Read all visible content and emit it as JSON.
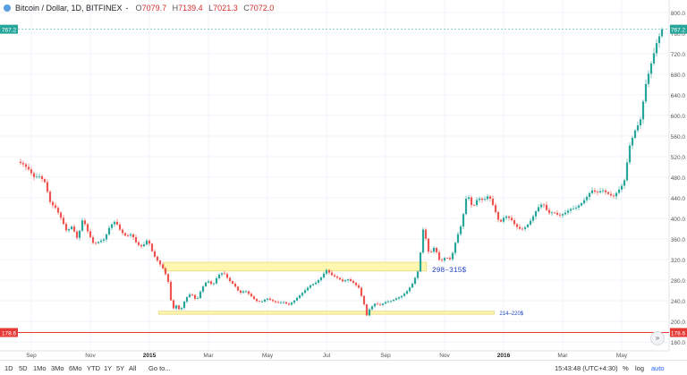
{
  "legend": {
    "symbol": "Bitcoin / Dollar, 1D, BITFINEX",
    "dash": "-",
    "o_label": "O",
    "o_value": "7079.7",
    "h_label": "H",
    "h_value": "7139.4",
    "l_label": "L",
    "l_value": "7021.3",
    "c_label": "C",
    "c_value": "7072.0"
  },
  "price_axis": {
    "ticks": [
      "800.0",
      "760.0",
      "720.0",
      "680.0",
      "640.0",
      "600.0",
      "560.0",
      "520.0",
      "480.0",
      "440.0",
      "400.0",
      "360.0",
      "320.0",
      "280.0",
      "240.0",
      "200.0",
      "160.0"
    ],
    "last_price_label": "767.2",
    "hline_label": "178.6"
  },
  "colors": {
    "up": "#26a69a",
    "down": "#ef5350",
    "hline": "#e53935",
    "zone_fill": "#fff6b0",
    "zone_stroke": "#e6d77a",
    "zone_text": "#1a3fbf",
    "last_badge": "#26a69a"
  },
  "time_axis": {
    "labels": [
      "Sep",
      "Nov",
      "2015",
      "Mar",
      "May",
      "Jul",
      "Sep",
      "Nov",
      "2016",
      "Mar",
      "May"
    ]
  },
  "annotations": {
    "upper_zone": "298–315$",
    "lower_zone": "214–220$"
  },
  "toolbar": {
    "timeframes": [
      "1D",
      "5D",
      "1Mo",
      "3Mo",
      "6Mo",
      "YTD",
      "1Y",
      "5Y",
      "All"
    ],
    "goto": "Go to...",
    "time": "15:43:48 (UTC+4:30)",
    "percent": "%",
    "log": "log",
    "auto": "auto"
  },
  "chart_data": {
    "type": "candlestick",
    "title": "Bitcoin / Dollar, 1D, BITFINEX",
    "ylim": [
      150,
      810
    ],
    "last_price": 767.2,
    "horizontal_line": 178.6,
    "zones": [
      {
        "label": "298–315$",
        "from": 298,
        "to": 315
      },
      {
        "label": "214–220$",
        "from": 214,
        "to": 220
      }
    ],
    "x_labels": [
      "Sep",
      "Nov",
      "2015",
      "Mar",
      "May",
      "Jul",
      "Sep",
      "Nov",
      "2016",
      "Mar",
      "May"
    ],
    "close_path": [
      [
        0,
        510
      ],
      [
        2,
        505
      ],
      [
        4,
        495
      ],
      [
        6,
        480
      ],
      [
        8,
        482
      ],
      [
        10,
        470
      ],
      [
        12,
        430
      ],
      [
        14,
        420
      ],
      [
        16,
        400
      ],
      [
        18,
        375
      ],
      [
        20,
        385
      ],
      [
        22,
        360
      ],
      [
        24,
        400
      ],
      [
        26,
        372
      ],
      [
        28,
        350
      ],
      [
        30,
        355
      ],
      [
        32,
        360
      ],
      [
        34,
        385
      ],
      [
        36,
        395
      ],
      [
        38,
        375
      ],
      [
        40,
        365
      ],
      [
        42,
        370
      ],
      [
        44,
        350
      ],
      [
        46,
        345
      ],
      [
        48,
        360
      ],
      [
        50,
        330
      ],
      [
        52,
        315
      ],
      [
        54,
        300
      ],
      [
        56,
        270
      ],
      [
        57,
        215
      ],
      [
        58,
        235
      ],
      [
        60,
        220
      ],
      [
        62,
        245
      ],
      [
        64,
        255
      ],
      [
        66,
        240
      ],
      [
        68,
        265
      ],
      [
        70,
        280
      ],
      [
        72,
        270
      ],
      [
        74,
        290
      ],
      [
        76,
        295
      ],
      [
        78,
        280
      ],
      [
        80,
        270
      ],
      [
        82,
        255
      ],
      [
        84,
        260
      ],
      [
        86,
        250
      ],
      [
        88,
        240
      ],
      [
        90,
        238
      ],
      [
        92,
        245
      ],
      [
        94,
        240
      ],
      [
        96,
        236
      ],
      [
        98,
        238
      ],
      [
        100,
        232
      ],
      [
        102,
        240
      ],
      [
        104,
        250
      ],
      [
        106,
        260
      ],
      [
        108,
        270
      ],
      [
        110,
        275
      ],
      [
        112,
        285
      ],
      [
        114,
        300
      ],
      [
        116,
        290
      ],
      [
        118,
        285
      ],
      [
        120,
        278
      ],
      [
        122,
        282
      ],
      [
        124,
        275
      ],
      [
        126,
        265
      ],
      [
        128,
        232
      ],
      [
        129,
        210
      ],
      [
        130,
        225
      ],
      [
        132,
        235
      ],
      [
        134,
        232
      ],
      [
        136,
        238
      ],
      [
        138,
        240
      ],
      [
        140,
        245
      ],
      [
        142,
        250
      ],
      [
        144,
        260
      ],
      [
        146,
        275
      ],
      [
        148,
        300
      ],
      [
        150,
        390
      ],
      [
        151,
        350
      ],
      [
        152,
        330
      ],
      [
        154,
        345
      ],
      [
        156,
        315
      ],
      [
        158,
        325
      ],
      [
        160,
        320
      ],
      [
        162,
        360
      ],
      [
        164,
        390
      ],
      [
        166,
        450
      ],
      [
        168,
        420
      ],
      [
        170,
        440
      ],
      [
        172,
        435
      ],
      [
        174,
        445
      ],
      [
        176,
        420
      ],
      [
        178,
        390
      ],
      [
        180,
        405
      ],
      [
        182,
        400
      ],
      [
        184,
        385
      ],
      [
        186,
        378
      ],
      [
        188,
        385
      ],
      [
        190,
        400
      ],
      [
        192,
        420
      ],
      [
        194,
        430
      ],
      [
        196,
        410
      ],
      [
        198,
        412
      ],
      [
        200,
        405
      ],
      [
        202,
        410
      ],
      [
        204,
        418
      ],
      [
        206,
        420
      ],
      [
        208,
        428
      ],
      [
        210,
        440
      ],
      [
        212,
        455
      ],
      [
        214,
        450
      ],
      [
        216,
        455
      ],
      [
        218,
        448
      ],
      [
        220,
        442
      ],
      [
        222,
        455
      ],
      [
        224,
        470
      ],
      [
        226,
        540
      ],
      [
        228,
        570
      ],
      [
        230,
        590
      ],
      [
        232,
        660
      ],
      [
        234,
        700
      ],
      [
        236,
        740
      ],
      [
        238,
        767
      ]
    ]
  }
}
